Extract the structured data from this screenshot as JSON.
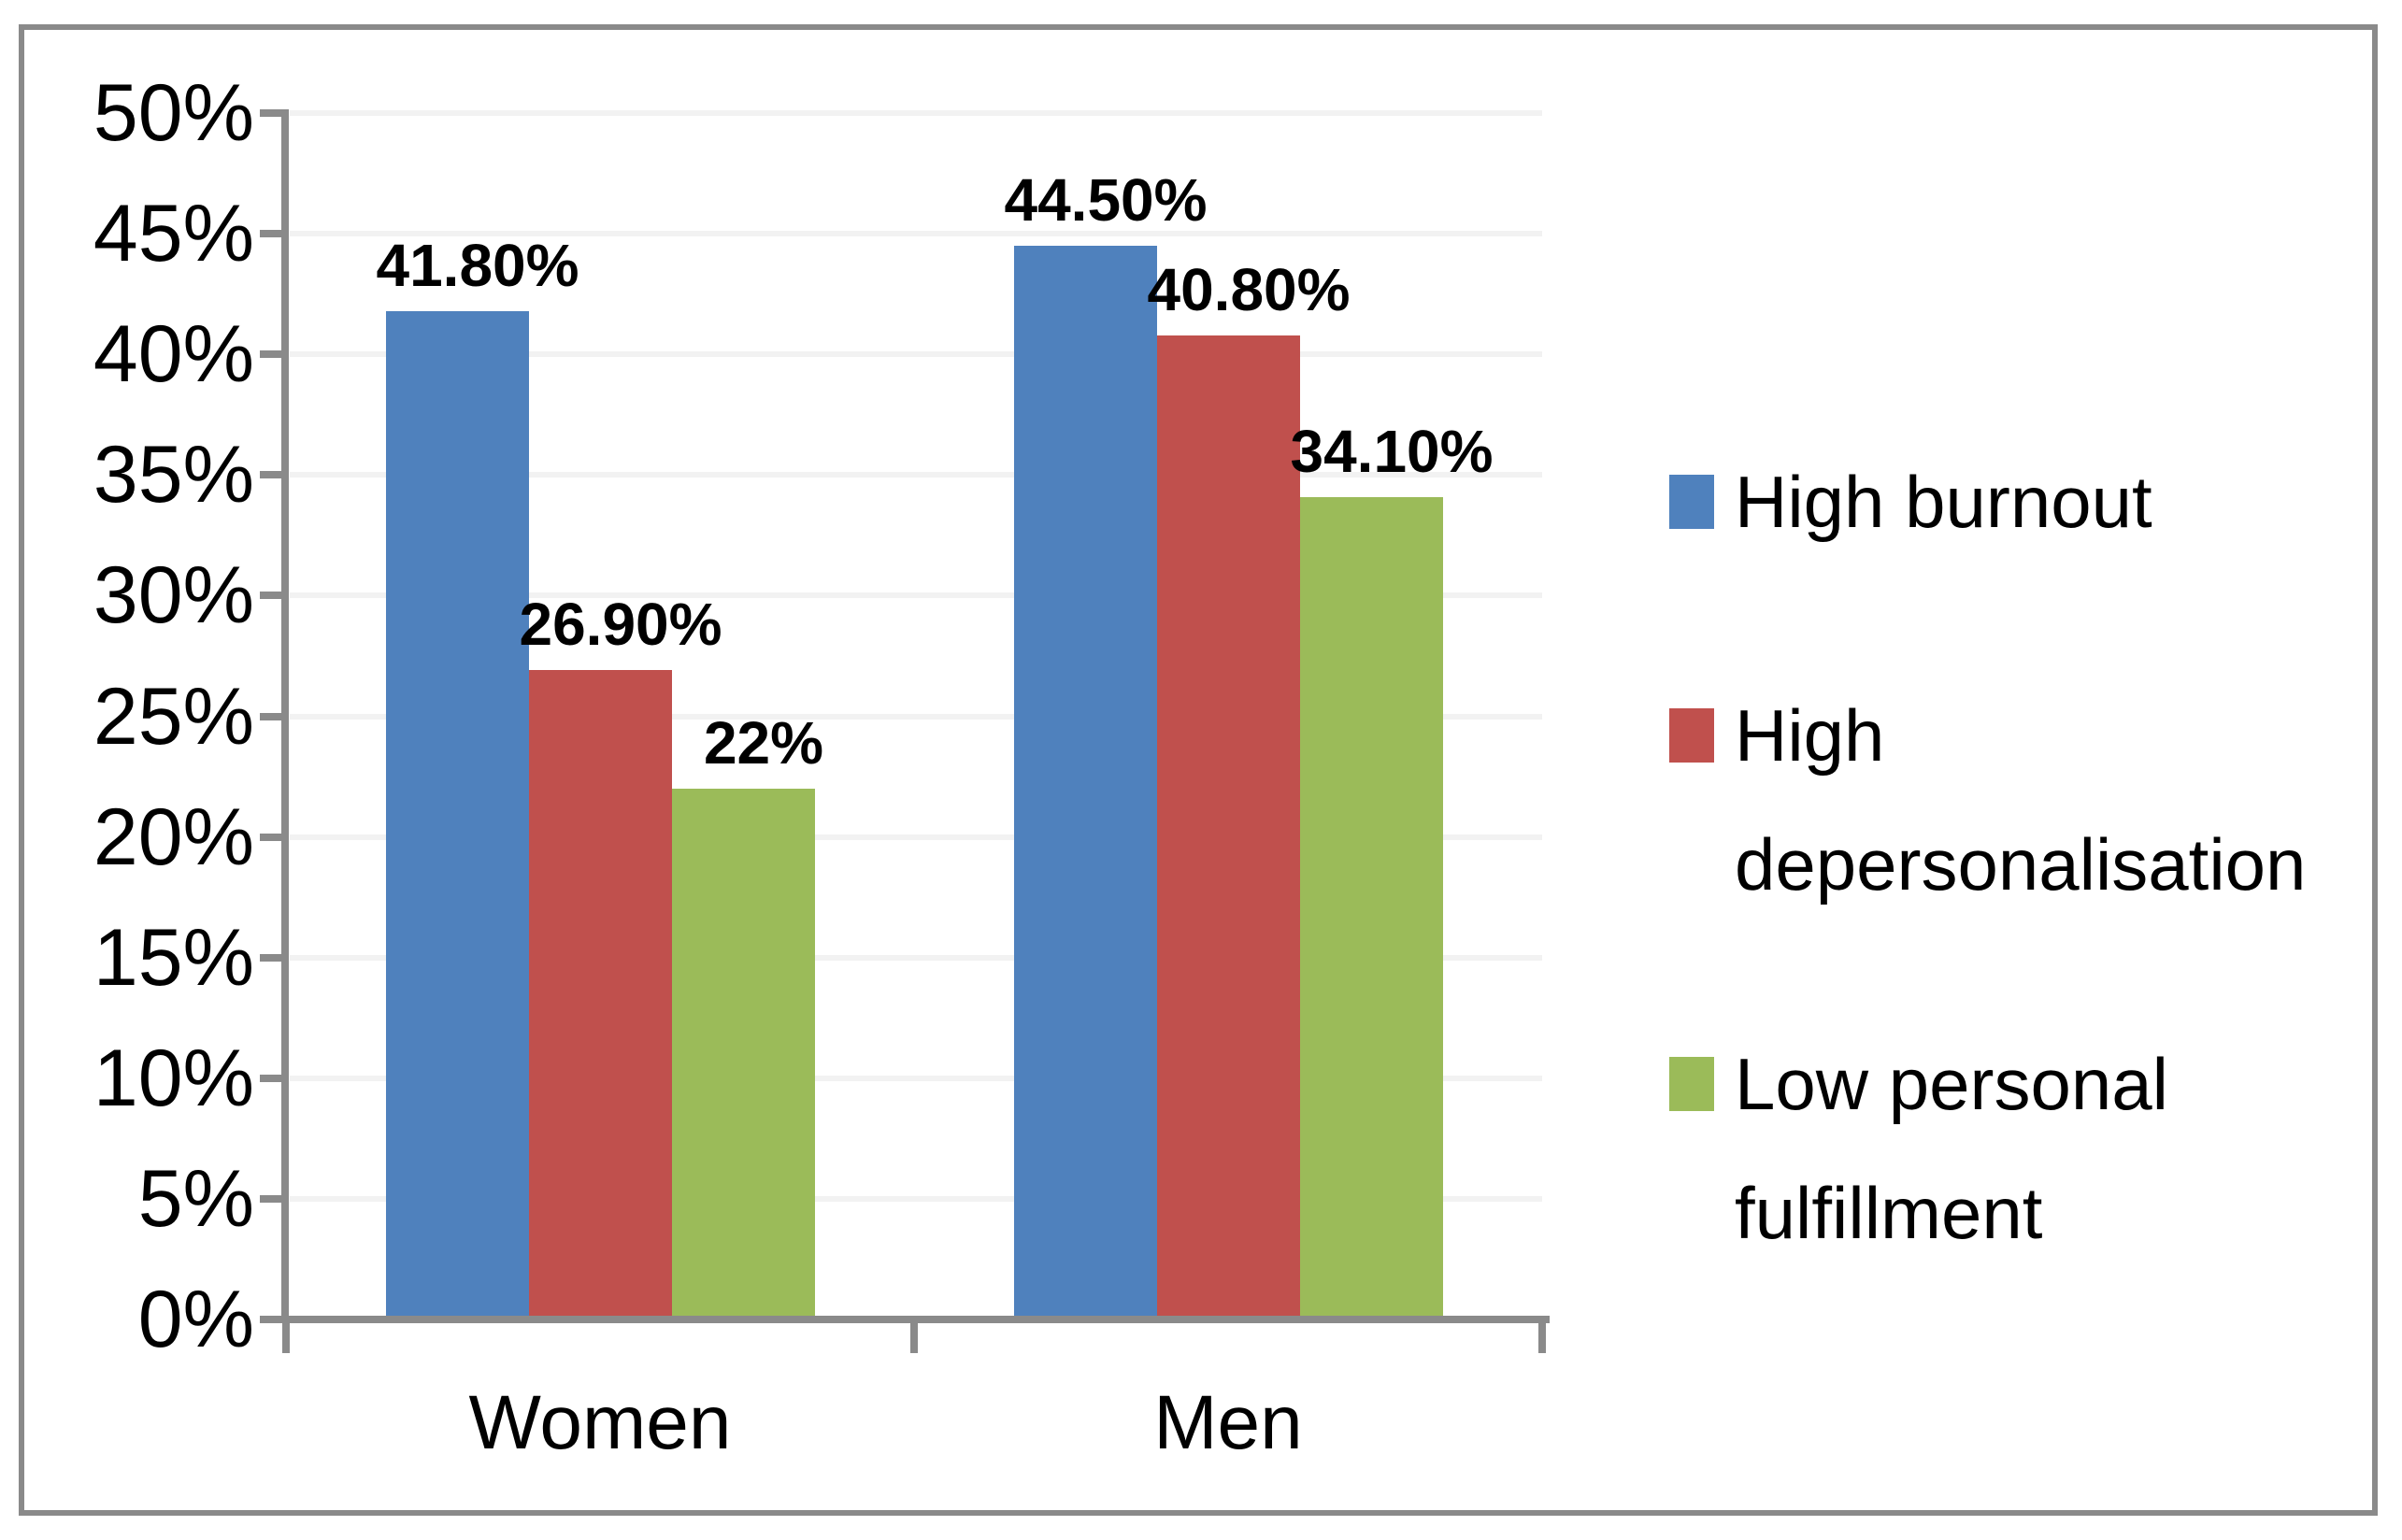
{
  "chart_data": {
    "type": "bar",
    "title": "",
    "xlabel": "",
    "ylabel": "",
    "categories": [
      "Women",
      "Men"
    ],
    "series": [
      {
        "name": "High burnout",
        "color": "#4F81BD",
        "values": [
          41.8,
          44.5
        ],
        "labels": [
          "41.80%",
          "44.50%"
        ]
      },
      {
        "name": "High depersonalisation",
        "color": "#C0504D",
        "values": [
          26.9,
          40.8
        ],
        "labels": [
          "26.90%",
          "40.80%"
        ]
      },
      {
        "name": "Low personal fulfillment",
        "color": "#9BBB59",
        "values": [
          22.0,
          34.1
        ],
        "labels": [
          "22%",
          "34.10%"
        ]
      }
    ],
    "ylim": [
      0,
      50
    ],
    "ytick_step": 5,
    "ytick_labels": [
      "0%",
      "5%",
      "10%",
      "15%",
      "20%",
      "25%",
      "30%",
      "35%",
      "40%",
      "45%",
      "50%"
    ],
    "legend_position": "right",
    "grid": "faint-horizontal",
    "axis_color": "#8a8a8a",
    "frame_color": "#8a8a8a",
    "background": "#ffffff",
    "data_label_color": "#000000"
  }
}
